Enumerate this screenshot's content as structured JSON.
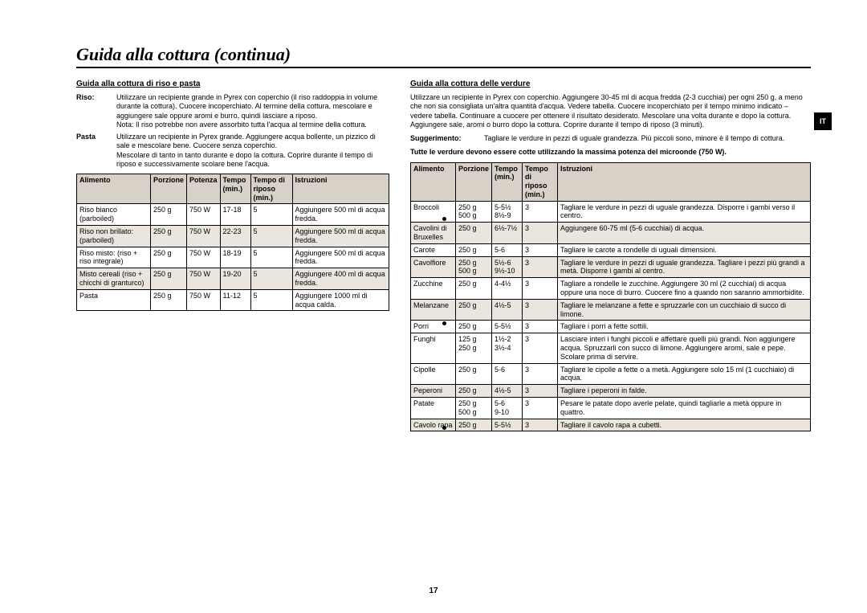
{
  "page": {
    "title": "Guida alla cottura (continua)",
    "langTab": "IT",
    "number": "17"
  },
  "left": {
    "heading": "Guida alla cottura di riso e pasta",
    "defs": [
      {
        "label": "Riso:",
        "text": "Utilizzare un recipiente grande in Pyrex con coperchio (il riso raddoppia in volume durante la cottura). Cuocere incoperchiato. Al termine della cottura, mescolare e aggiungere sale oppure aromi e burro, quindi lasciare a riposo.\nNota: Il riso potrebbe non avere assorbito tutta l'acqua al termine della cottura."
      },
      {
        "label": "Pasta",
        "text": "Utilizzare un recipiente in Pyrex grande. Aggiungere acqua bollente, un pizzico di sale e mescolare bene. Cuocere senza coperchio.\nMescolare di tanto in tanto durante e dopo la cottura. Coprire durante il tempo di riposo e successivamente scolare bene l'acqua."
      }
    ],
    "table": {
      "headers": [
        "Alimento",
        "Porzione",
        "Potenza",
        "Tempo (min.)",
        "Tempo di riposo (min.)",
        "Istruzioni"
      ],
      "rows": [
        {
          "alt": false,
          "c": [
            "Riso bianco (parboiled)",
            "250 g",
            "750 W",
            "17-18",
            "5",
            "Aggiungere 500 ml di acqua fredda."
          ]
        },
        {
          "alt": true,
          "c": [
            "Riso non brillato: (parboiled)",
            "250 g",
            "750 W",
            "22-23",
            "5",
            "Aggiungere 500 ml di acqua fredda."
          ]
        },
        {
          "alt": false,
          "c": [
            "Riso misto: (riso + riso integrale)",
            "250 g",
            "750 W",
            "18-19",
            "5",
            "Aggiungere 500 ml di acqua fredda."
          ]
        },
        {
          "alt": true,
          "c": [
            "Misto cereali (riso + chicchi di granturco)",
            "250 g",
            "750 W",
            "19-20",
            "5",
            "Aggiungere 400 ml di acqua fredda."
          ]
        },
        {
          "alt": false,
          "c": [
            "Pasta",
            "250 g",
            "750 W",
            "11-12",
            "5",
            "Aggiungere 1000 ml di acqua calda."
          ]
        }
      ]
    }
  },
  "right": {
    "heading": "Guida alla cottura delle verdure",
    "intro": "Utilizzare un recipiente in Pyrex con coperchio. Aggiungere 30-45 ml di acqua fredda (2-3 cucchiai) per ogni 250 g, a meno che non sia consigliata un'altra quantità d'acqua. Vedere tabella. Cuocere incoperchiato per il tempo minimo indicato – vedere tabella. Continuare a cuocere per ottenere il risultato desiderato. Mescolare una volta durante e dopo la cottura. Aggiungere sale, aromi o burro dopo la cottura. Coprire durante il tempo di riposo (3 minuti).",
    "tipLabel": "Suggerimento:",
    "tipText": "Tagliare le verdure in pezzi di uguale grandezza. Più piccoli sono, minore è il tempo di cottura.",
    "note": "Tutte le verdure devono essere cotte utilizzando la massima potenza del microonde (750 W).",
    "table": {
      "headers": [
        "Alimento",
        "Porzione",
        "Tempo (min.)",
        "Tempo di riposo (min.)",
        "Istruzioni"
      ],
      "rows": [
        {
          "alt": false,
          "c": [
            "Broccoli",
            "250 g\n500 g",
            "5-5½\n8½-9",
            "3",
            "Tagliare le verdure in pezzi di uguale grandezza. Disporre i gambi verso il centro."
          ]
        },
        {
          "alt": true,
          "c": [
            "Cavolini di Bruxelles",
            "250 g",
            "6½-7½",
            "3",
            "Aggiungere 60-75 ml (5-6 cucchiai) di acqua."
          ]
        },
        {
          "alt": false,
          "c": [
            "Carote",
            "250 g",
            "5-6",
            "3",
            "Tagliare le carote a rondelle di uguali dimensioni."
          ]
        },
        {
          "alt": true,
          "c": [
            "Cavolfiore",
            "250 g\n500 g",
            "5½-6\n9½-10",
            "3",
            "Tagliare le verdure in pezzi di uguale grandezza. Tagliare i pezzi più grandi a metà. Disporre i gambi al centro."
          ]
        },
        {
          "alt": false,
          "c": [
            "Zucchine",
            "250 g",
            "4-4½",
            "3",
            "Tagliare a rondelle le zucchine. Aggiungere 30 ml (2 cucchiai) di acqua oppure una noce di burro. Cuocere fino a quando non saranno ammorbidite."
          ]
        },
        {
          "alt": true,
          "c": [
            "Melanzane",
            "250 g",
            "4½-5",
            "3",
            "Tagliare le melanzane a fette e spruzzarle con un cucchiaio di succo di limone."
          ]
        },
        {
          "alt": false,
          "c": [
            "Porri",
            "250 g",
            "5-5½",
            "3",
            "Tagliare i porri a fette sottili."
          ]
        },
        {
          "alt": false,
          "c": [
            "Funghi",
            "125 g\n250 g",
            "1½-2\n3½-4",
            "3",
            "Lasciare interi i funghi piccoli e affettare quelli più grandi. Non aggiungere acqua. Spruzzarli con succo di limone. Aggiungere aromi, sale e pepe. Scolare prima di servire."
          ]
        },
        {
          "alt": false,
          "c": [
            "Cipolle",
            "250 g",
            "5-6",
            "3",
            "Tagliare le cipolle a fette o a metà. Aggiungere solo 15 ml (1 cucchiaio) di acqua."
          ]
        },
        {
          "alt": true,
          "c": [
            "Peperoni",
            "250 g",
            "4½-5",
            "3",
            "Tagliare i peperoni in falde."
          ]
        },
        {
          "alt": false,
          "c": [
            "Patate",
            "250 g\n500 g",
            "5-6\n9-10",
            "3",
            "Pesare le patate dopo averle pelate, quindi tagliarle a metà oppure in quattro."
          ]
        },
        {
          "alt": true,
          "c": [
            "Cavolo rapa",
            "250 g",
            "5-5½",
            "3",
            "Tagliare il cavolo rapa a cubetti."
          ]
        }
      ]
    }
  }
}
